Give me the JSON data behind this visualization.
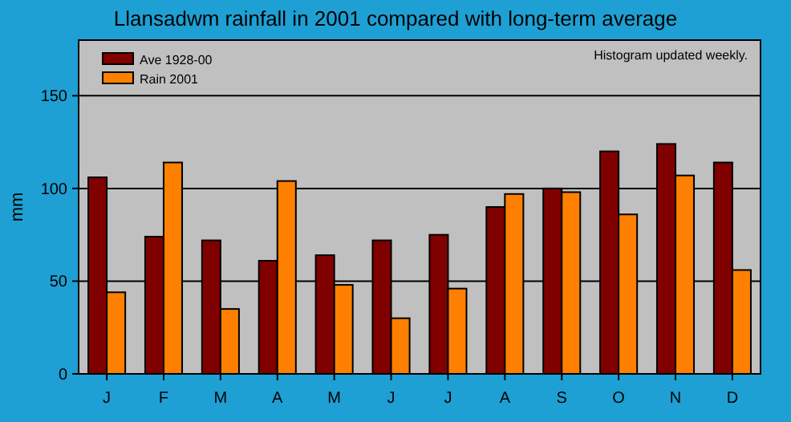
{
  "chart_data": {
    "type": "bar",
    "title": "Llansadwm rainfall in 2001 compared with long-term average",
    "ylabel": "mm",
    "categories": [
      "J",
      "F",
      "M",
      "A",
      "M",
      "J",
      "J",
      "A",
      "S",
      "O",
      "N",
      "D"
    ],
    "series": [
      {
        "name": "Ave 1928-00",
        "color": "#800000",
        "values": [
          106,
          74,
          72,
          61,
          64,
          72,
          75,
          90,
          100,
          120,
          124,
          114
        ]
      },
      {
        "name": "Rain 2001",
        "color": "#ff8000",
        "values": [
          44,
          114,
          35,
          104,
          48,
          30,
          46,
          97,
          98,
          86,
          107,
          56
        ]
      }
    ],
    "ylim": [
      0,
      180
    ],
    "yticks": [
      0,
      50,
      100,
      150
    ],
    "grid": "y",
    "legend": "top left",
    "annotations": [
      "Histogram updated weekly."
    ]
  }
}
